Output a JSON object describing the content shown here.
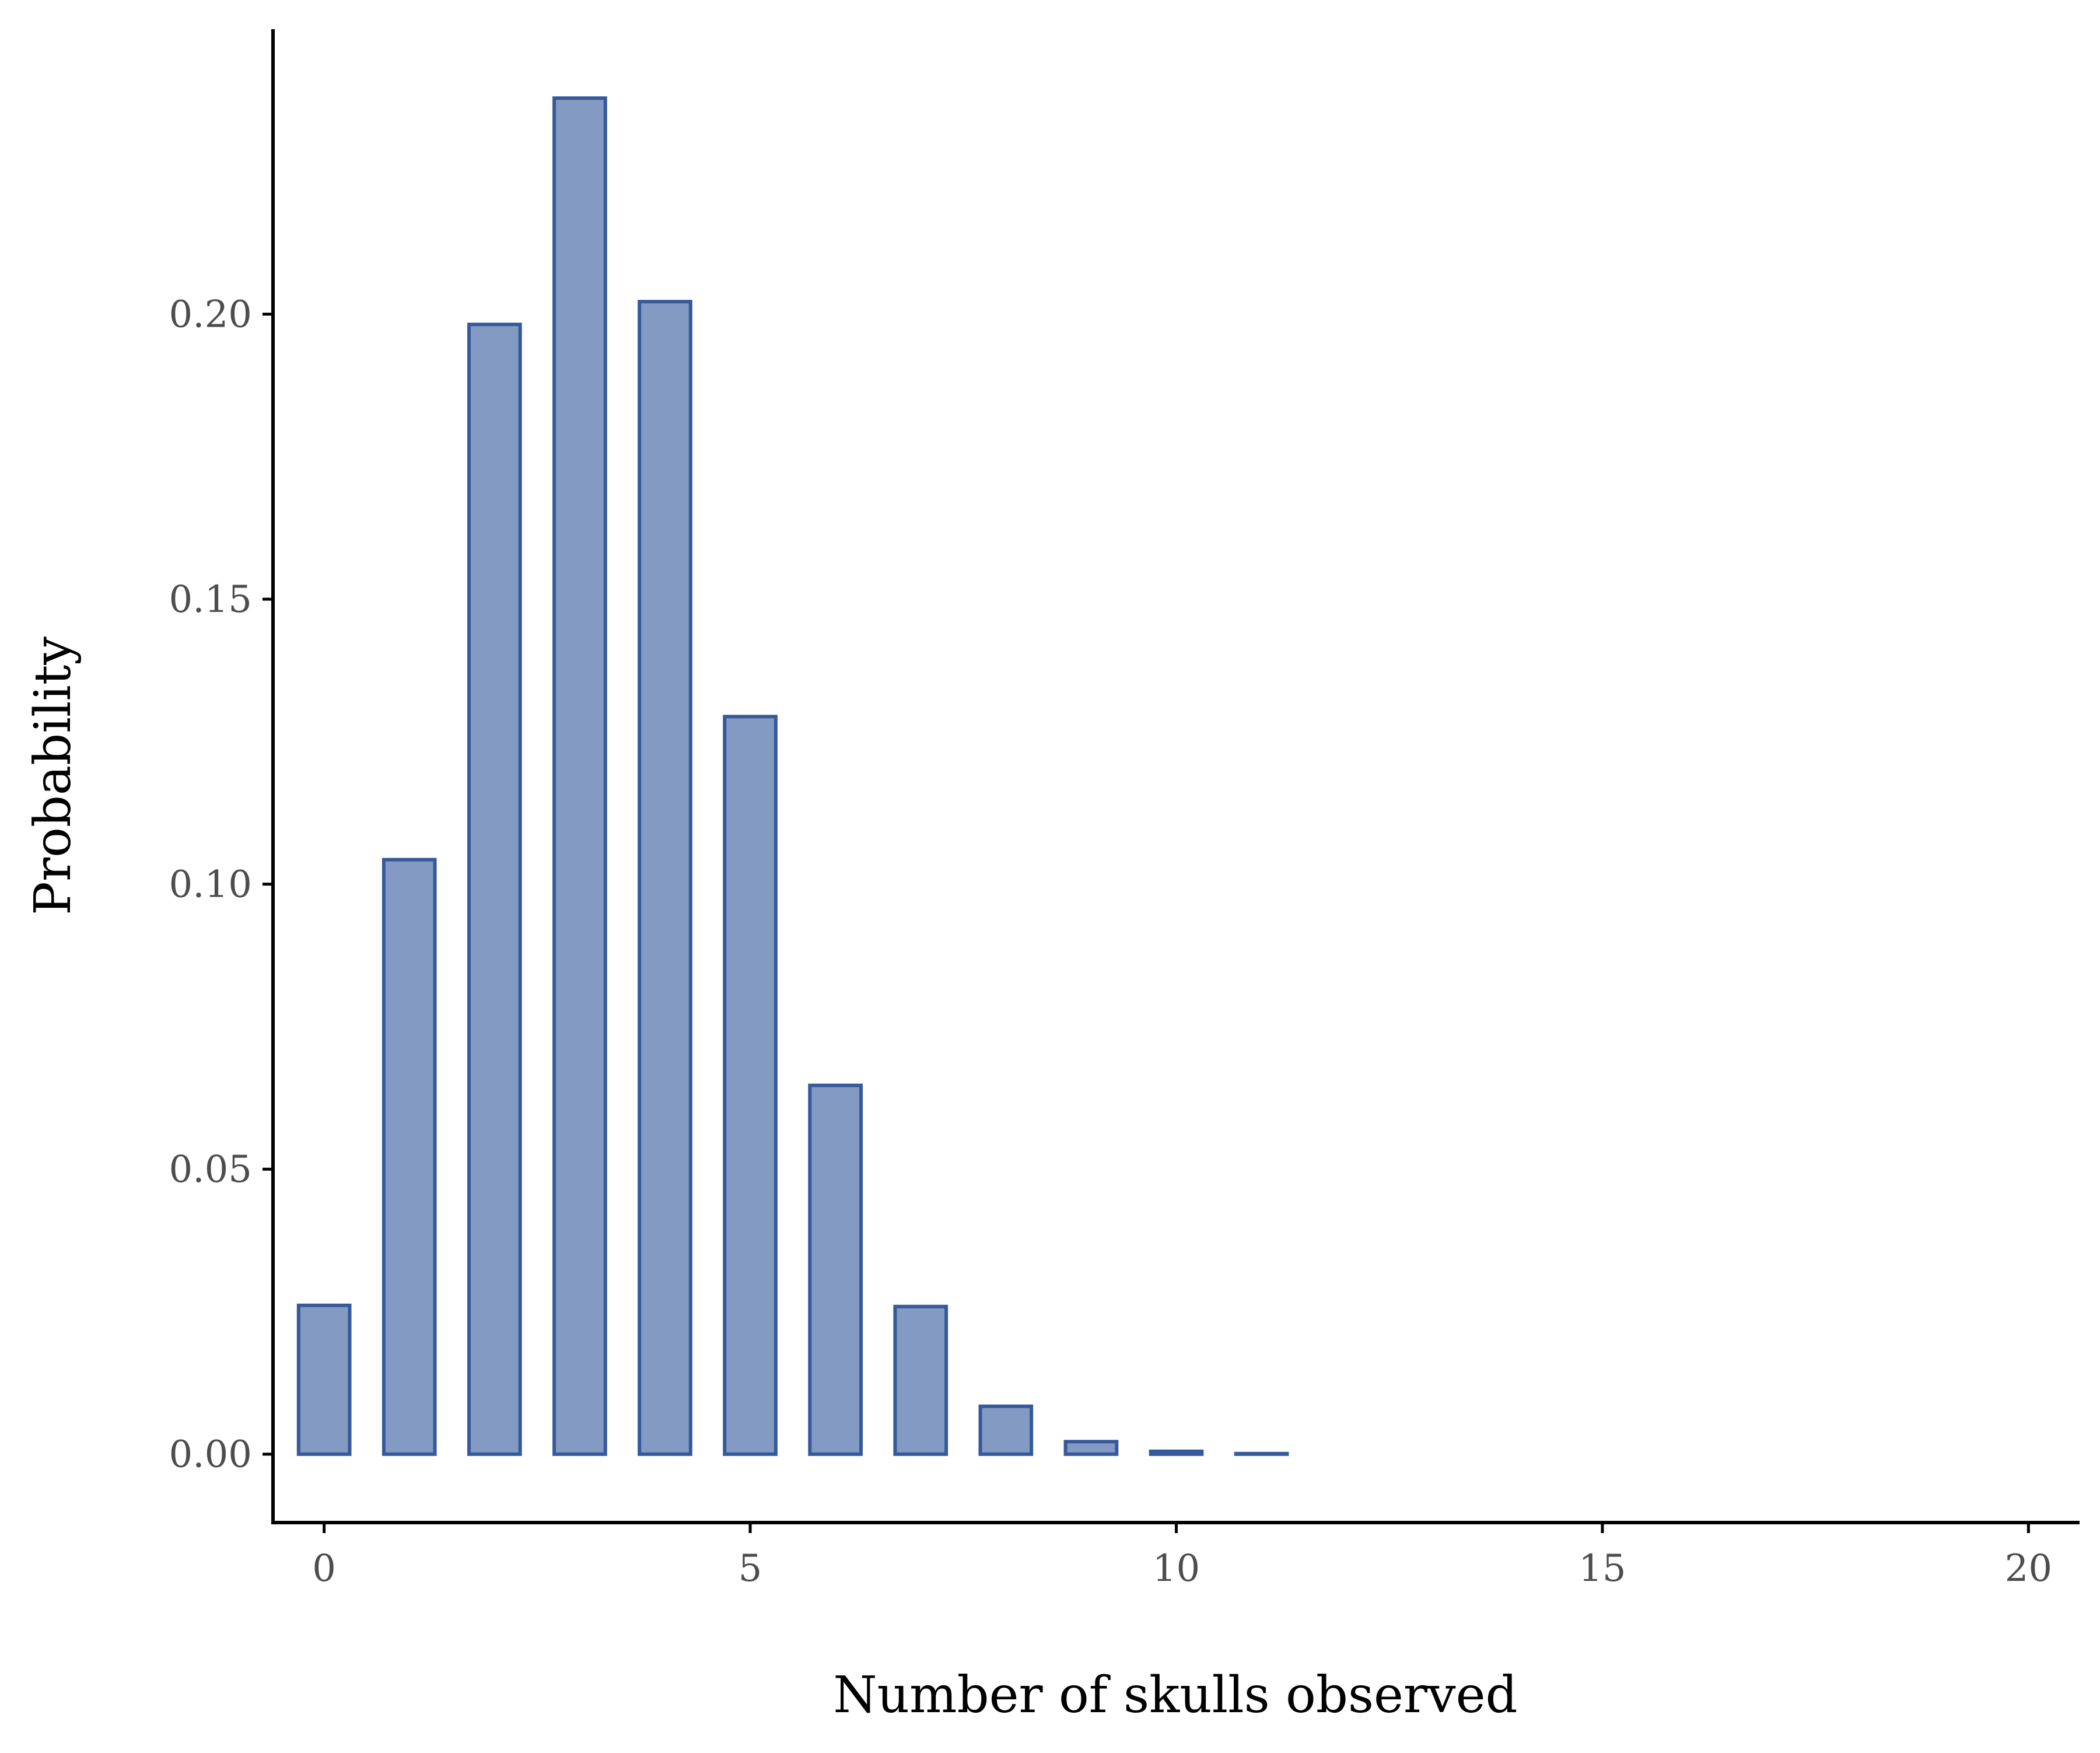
{
  "chart_data": {
    "type": "bar",
    "xlabel": "Number of skulls observed",
    "ylabel": "Probability",
    "x": [
      0,
      1,
      2,
      3,
      4,
      5,
      6,
      7,
      8,
      9,
      10,
      11,
      12,
      13,
      14,
      15,
      16,
      17,
      18,
      19,
      20
    ],
    "values": [
      0.0261,
      0.1043,
      0.1982,
      0.2379,
      0.2022,
      0.1294,
      0.0647,
      0.0259,
      0.0084,
      0.0022,
      0.0005,
      0.0001,
      0.0,
      0.0,
      0.0,
      0.0,
      0.0,
      0.0,
      0.0,
      0.0,
      0.0
    ],
    "xlim": [
      -0.6,
      20.6
    ],
    "ylim": [
      -0.012,
      0.25
    ],
    "x_ticks": [
      0,
      5,
      10,
      15,
      20
    ],
    "x_tick_labels": [
      "0",
      "5",
      "10",
      "15",
      "20"
    ],
    "y_ticks": [
      0.0,
      0.05,
      0.1,
      0.15,
      0.2
    ],
    "y_tick_labels": [
      "0.00",
      "0.05",
      "0.10",
      "0.15",
      "0.20"
    ],
    "grid": false,
    "legend": "none",
    "colors": {
      "bar_fill": "#839bc3",
      "bar_outline": "#35599a",
      "axis": "#000000",
      "tick_text": "#4d4d4d"
    }
  }
}
